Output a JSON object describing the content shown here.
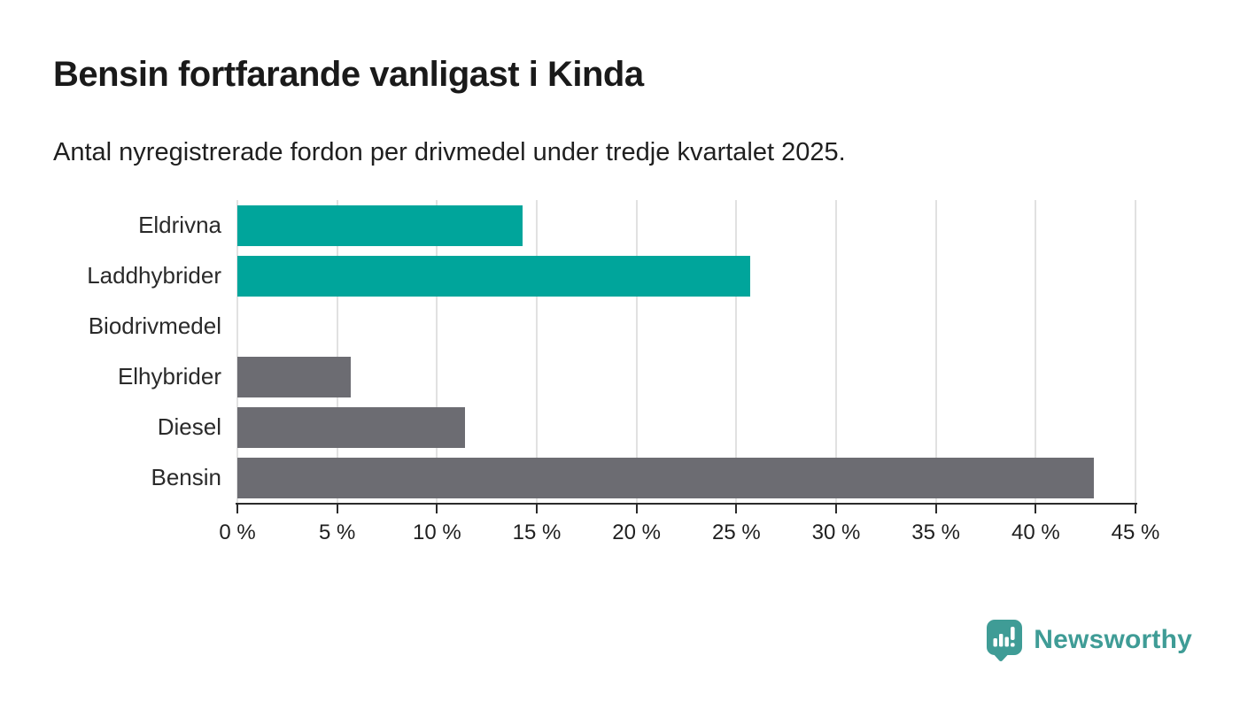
{
  "title": "Bensin fortfarande vanligast i Kinda",
  "subtitle": "Antal nyregistrerade fordon per drivmedel under tredje kvartalet 2025.",
  "colors": {
    "highlight_bar": "#00a59b",
    "default_bar": "#6c6c72",
    "gridline": "#e1e1e1",
    "axis": "#2b2b2b",
    "text": "#1a1a1a",
    "logo_teal": "#3f9c96"
  },
  "chart_data": {
    "type": "bar",
    "orientation": "horizontal",
    "title": "Bensin fortfarande vanligast i Kinda",
    "subtitle": "Antal nyregistrerade fordon per drivmedel under tredje kvartalet 2025.",
    "categories": [
      "Eldrivna",
      "Laddhybrider",
      "Biodrivmedel",
      "Elhybrider",
      "Diesel",
      "Bensin"
    ],
    "values": [
      14.3,
      25.7,
      0,
      5.7,
      11.4,
      42.9
    ],
    "bar_colors": [
      "#00a59b",
      "#00a59b",
      "#6c6c72",
      "#6c6c72",
      "#6c6c72",
      "#6c6c72"
    ],
    "unit": "%",
    "xlim": [
      0,
      45
    ],
    "x_ticks": [
      0,
      5,
      10,
      15,
      20,
      25,
      30,
      35,
      40,
      45
    ],
    "x_tick_labels": [
      "0 %",
      "5 %",
      "10 %",
      "15 %",
      "20 %",
      "25 %",
      "30 %",
      "35 %",
      "40 %",
      "45 %"
    ],
    "grid": true,
    "legend": false
  },
  "branding": {
    "name": "Newsworthy",
    "icon": "newsworthy-pin-chart-icon"
  }
}
